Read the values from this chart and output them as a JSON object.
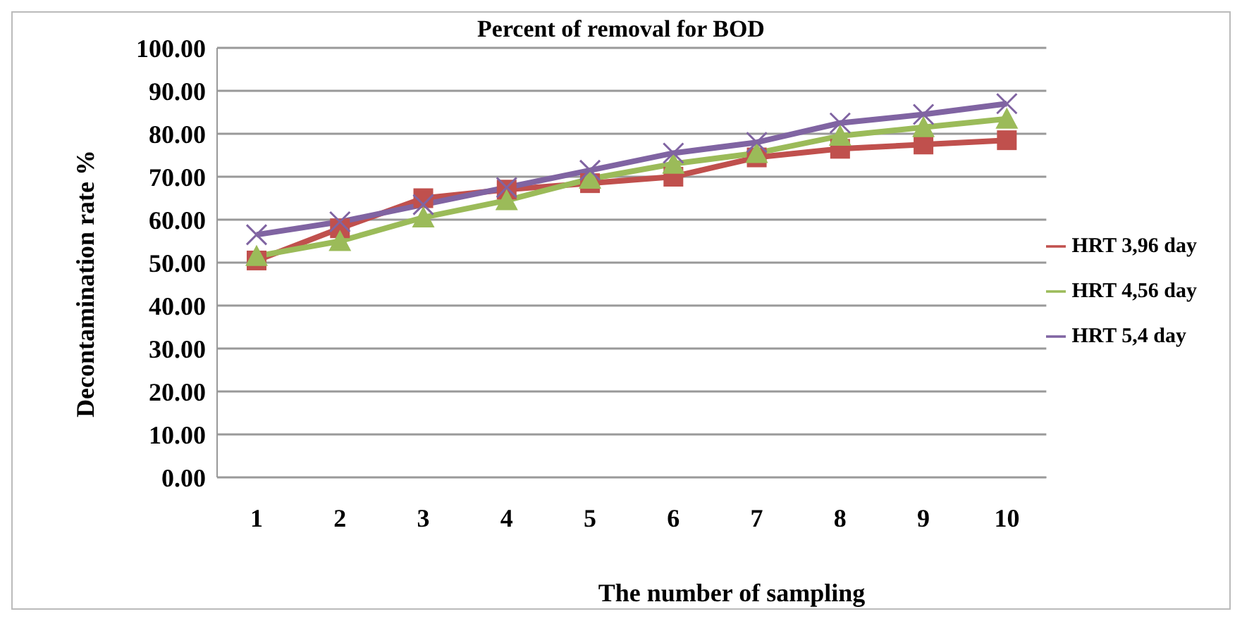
{
  "chart_data": {
    "type": "line",
    "title": "Percent of removal for BOD",
    "xlabel": "The number of sampling",
    "ylabel": "Decontamination rate %",
    "categories": [
      "1",
      "2",
      "3",
      "4",
      "5",
      "6",
      "7",
      "8",
      "9",
      "10"
    ],
    "series": [
      {
        "name": "HRT 3,96 day",
        "color": "#c0504d",
        "marker": "square",
        "values": [
          50.5,
          58,
          65,
          67,
          68.5,
          70,
          74.5,
          76.5,
          77.5,
          78.5
        ]
      },
      {
        "name": "HRT 4,56 day",
        "color": "#9bbb59",
        "marker": "triangle",
        "values": [
          51.5,
          55,
          60.5,
          64.5,
          69.5,
          73,
          75.5,
          79.5,
          81.5,
          83.5
        ]
      },
      {
        "name": "HRT 5,4 day",
        "color": "#8064a2",
        "marker": "cross",
        "values": [
          56.5,
          59.5,
          63.5,
          67.5,
          71.5,
          75.5,
          78,
          82.5,
          84.5,
          87
        ]
      }
    ],
    "ylim": [
      0,
      100
    ],
    "yticks": [
      {
        "value": 0,
        "label": "0.00"
      },
      {
        "value": 10,
        "label": "10.00"
      },
      {
        "value": 20,
        "label": "20.00"
      },
      {
        "value": 30,
        "label": "30.00"
      },
      {
        "value": 40,
        "label": "40.00"
      },
      {
        "value": 50,
        "label": "50.00"
      },
      {
        "value": 60,
        "label": "60.00"
      },
      {
        "value": 70,
        "label": "70.00"
      },
      {
        "value": 80,
        "label": "80.00"
      },
      {
        "value": 90,
        "label": "90.00"
      },
      {
        "value": 100,
        "label": "100.00"
      }
    ],
    "grid": "y",
    "legend": "right",
    "line_style": "solid"
  }
}
